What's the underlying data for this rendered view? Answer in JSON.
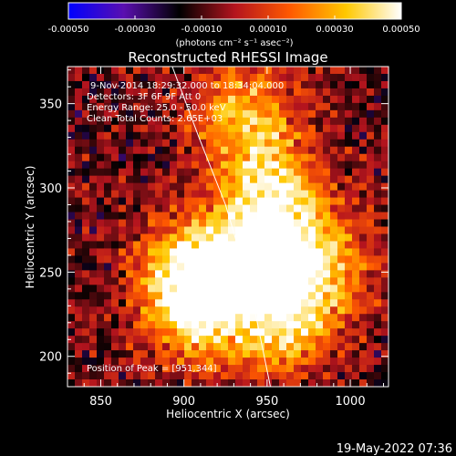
{
  "chart_data": {
    "type": "heatmap",
    "title": "Reconstructed RHESSI Image",
    "xlabel": "Heliocentric X (arcsec)",
    "ylabel": "Heliocentric Y (arcsec)",
    "xlim": [
      830,
      1023
    ],
    "ylim": [
      182,
      372
    ],
    "x_ticks": [
      "850",
      "900",
      "950",
      "1000"
    ],
    "x_tick_values": [
      850,
      900,
      950,
      1000
    ],
    "y_ticks": [
      "200",
      "250",
      "300",
      "350"
    ],
    "y_tick_values": [
      200,
      250,
      300,
      350
    ],
    "colorbar": {
      "range": [
        -0.0005,
        0.0005
      ],
      "tick_labels": [
        "-0.00050",
        "-0.00030",
        "-0.00010",
        "0.00010",
        "0.00030",
        "0.00050"
      ],
      "tick_values": [
        -0.0005,
        -0.0003,
        -0.0001,
        0.0001,
        0.0003,
        0.0005
      ],
      "unit_label": "(photons cm⁻² s⁻¹ asec⁻²)",
      "colormap": [
        "#0000ff",
        "#5a0fb0",
        "#000000",
        "#b4141e",
        "#ff5a00",
        "#ffc800",
        "#ffffff"
      ]
    },
    "info_lines": [
      "9-Nov-2014 18:29:32.000 to 18:34:04.000",
      "Detectors: 3F 6F 9F  Att 0",
      "Energy Range: 25.0 - 50.0 keV",
      "Clean    Total Counts: 2.65E+03"
    ],
    "peak_label": "Position of Peak = [951,344]",
    "limb_line_points": [
      [
        893,
        372
      ],
      [
        909,
        330
      ],
      [
        925,
        290
      ],
      [
        940,
        240
      ],
      [
        952,
        182
      ]
    ],
    "hot_spots": [
      {
        "x": 905,
        "y": 250,
        "amplitude": 1.0
      },
      {
        "x": 950,
        "y": 260,
        "amplitude": 1.0
      },
      {
        "x": 952,
        "y": 300,
        "amplitude": 0.8
      },
      {
        "x": 960,
        "y": 220,
        "amplitude": 0.75
      },
      {
        "x": 935,
        "y": 345,
        "amplitude": 0.7
      },
      {
        "x": 910,
        "y": 225,
        "amplitude": 0.7
      },
      {
        "x": 985,
        "y": 255,
        "amplitude": 0.6
      }
    ]
  },
  "footer": {
    "timestamp": "19-May-2022 07:36"
  }
}
